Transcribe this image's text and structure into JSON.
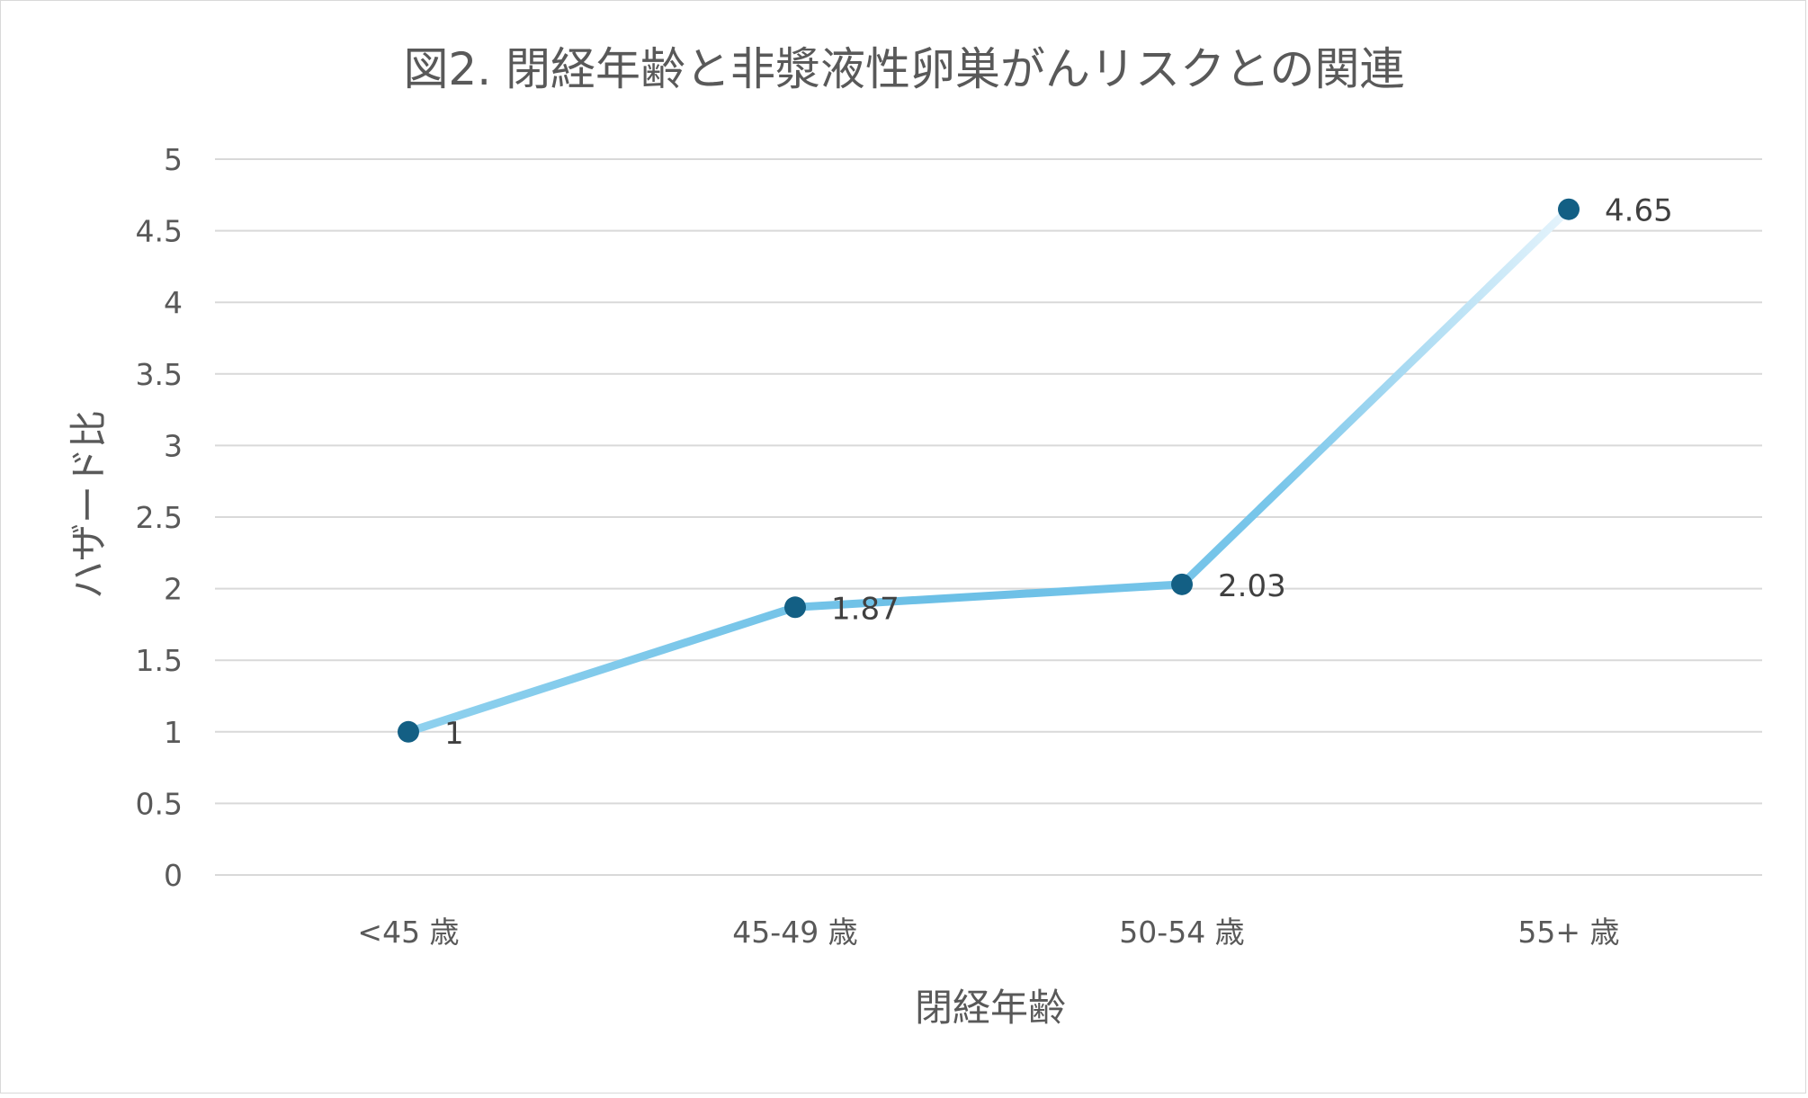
{
  "chart_data": {
    "type": "line",
    "title": "図2. 閉経年齢と非漿液性卵巣がんリスクとの関連",
    "xlabel": "閉経年齢",
    "ylabel": "ハザード比",
    "categories": [
      "<45 歳",
      "45-49 歳",
      "50-54 歳",
      "55+ 歳"
    ],
    "series": [
      {
        "values": [
          1,
          1.87,
          2.03,
          4.65
        ],
        "data_labels": [
          "1",
          "1.87",
          "2.03",
          "4.65"
        ]
      }
    ],
    "ylim": [
      0,
      5
    ],
    "yticks": [
      "0",
      "0.5",
      "1",
      "1.5",
      "2",
      "2.5",
      "3",
      "3.5",
      "4",
      "4.5",
      "5"
    ],
    "grid": true,
    "legend": "none",
    "colors": {
      "line_start": "#8fd1ee",
      "line_mid": "#6bbfe6",
      "line_end": "#e6f4fc",
      "marker": "#135f84",
      "grid": "#d9d9d9",
      "text": "#595959"
    }
  }
}
